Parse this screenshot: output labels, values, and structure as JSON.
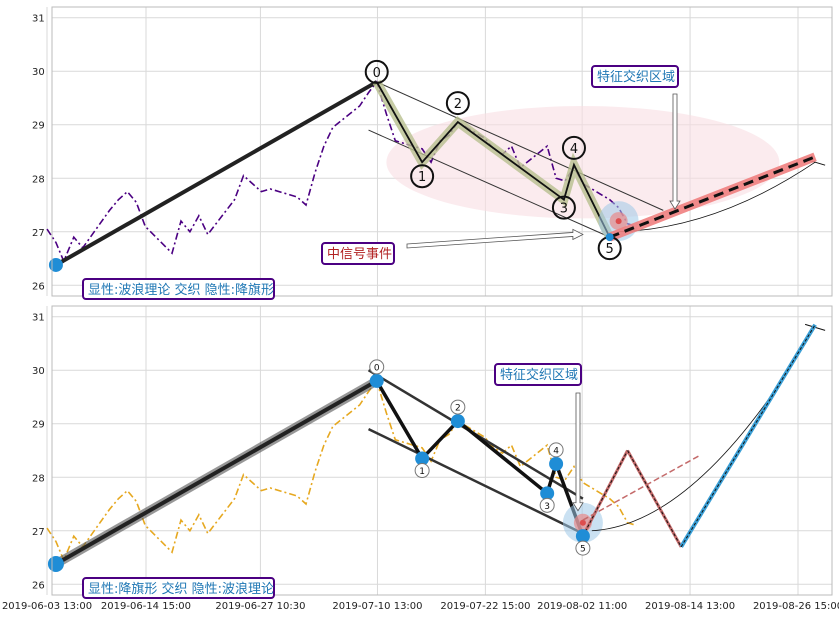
{
  "chart_data": [
    {
      "type": "line",
      "ylim": [
        25.8,
        31.2
      ],
      "yticks": [
        "26",
        "27",
        "28",
        "29",
        "30",
        "31"
      ],
      "grid": true,
      "price_color": "#4b0082",
      "price_style": "dashdot",
      "price_series": [
        [
          "2019-06-03 13:00",
          27.05
        ],
        [
          "2019-06-04 13:00",
          26.8
        ],
        [
          "2019-06-05 10:00",
          26.45
        ],
        [
          "2019-06-06 13:00",
          26.9
        ],
        [
          "2019-06-07 13:00",
          26.7
        ],
        [
          "2019-06-10 13:00",
          27.4
        ],
        [
          "2019-06-11 13:00",
          27.6
        ],
        [
          "2019-06-12 13:00",
          27.75
        ],
        [
          "2019-06-13 13:00",
          27.55
        ],
        [
          "2019-06-14 13:00",
          27.1
        ],
        [
          "2019-06-17 13:00",
          26.6
        ],
        [
          "2019-06-18 13:00",
          27.2
        ],
        [
          "2019-06-19 13:00",
          27.0
        ],
        [
          "2019-06-20 13:00",
          27.3
        ],
        [
          "2019-06-21 13:00",
          26.95
        ],
        [
          "2019-06-24 13:00",
          27.6
        ],
        [
          "2019-06-25 13:00",
          28.05
        ],
        [
          "2019-06-26 13:00",
          27.9
        ],
        [
          "2019-06-27 13:00",
          27.75
        ],
        [
          "2019-06-28 13:00",
          27.8
        ],
        [
          "2019-07-01 13:00",
          27.65
        ],
        [
          "2019-07-02 13:00",
          27.5
        ],
        [
          "2019-07-03 13:00",
          28.1
        ],
        [
          "2019-07-04 13:00",
          28.6
        ],
        [
          "2019-07-05 13:00",
          28.95
        ],
        [
          "2019-07-08 13:00",
          29.35
        ],
        [
          "2019-07-09 13:00",
          29.6
        ],
        [
          "2019-07-10 11:00",
          29.8
        ],
        [
          "2019-07-11 13:00",
          29.2
        ],
        [
          "2019-07-12 13:00",
          28.7
        ],
        [
          "2019-07-15 13:00",
          28.55
        ],
        [
          "2019-07-16 13:00",
          28.3
        ],
        [
          "2019-07-17 13:00",
          28.7
        ],
        [
          "2019-07-18 13:00",
          28.8
        ],
        [
          "2019-07-19 13:00",
          29.05
        ],
        [
          "2019-07-22 13:00",
          28.75
        ],
        [
          "2019-07-23 13:00",
          28.55
        ],
        [
          "2019-07-24 13:00",
          28.45
        ],
        [
          "2019-07-25 13:00",
          28.6
        ],
        [
          "2019-07-26 13:00",
          28.2
        ],
        [
          "2019-07-29 13:00",
          28.6
        ],
        [
          "2019-07-30 13:00",
          28.0
        ],
        [
          "2019-07-31 13:00",
          27.95
        ],
        [
          "2019-08-01 13:00",
          28.2
        ],
        [
          "2019-08-02 13:00",
          27.9
        ],
        [
          "2019-08-05 13:00",
          27.6
        ],
        [
          "2019-08-06 13:00",
          27.45
        ],
        [
          "2019-08-07 13:00",
          27.15
        ],
        [
          "2019-08-08 13:00",
          27.1
        ]
      ],
      "waves": {
        "labels": [
          "0",
          "1",
          "2",
          "3",
          "4",
          "5"
        ],
        "points": [
          [
            "2019-07-10 11:00",
            29.8
          ],
          [
            "2019-07-15 13:00",
            28.3
          ],
          [
            "2019-07-19 13:00",
            29.05
          ],
          [
            "2019-07-31 10:00",
            27.6
          ],
          [
            "2019-08-01 13:00",
            28.25
          ],
          [
            "2019-08-05 13:00",
            26.9
          ]
        ]
      },
      "impulse_line": [
        [
          "2019-06-04 13:00",
          26.38
        ],
        [
          "2019-07-10 11:00",
          29.8
        ]
      ],
      "start_point": [
        "2019-06-04 13:00",
        26.38
      ],
      "channel_upper": [
        [
          "2019-07-10 11:00",
          29.8
        ],
        [
          "2019-08-11 13:00",
          27.4
        ]
      ],
      "channel_lower": [
        [
          "2019-07-09 13:00",
          28.9
        ],
        [
          "2019-08-05 13:00",
          26.9
        ]
      ],
      "forecast": [
        [
          "2019-08-05 13:00",
          26.9
        ],
        [
          "2019-08-28 13:00",
          28.4
        ]
      ],
      "forecast_arc": [
        [
          "2019-08-06 13:00",
          27.0
        ],
        [
          "2019-08-17 13:00",
          27.25
        ],
        [
          "2019-08-28 13:00",
          28.3
        ]
      ],
      "feature_zone": {
        "center": [
          "2019-08-06 13:00",
          27.2
        ],
        "label": "特征交织区域"
      },
      "signal_event": {
        "label": "中信号事件",
        "arrow_to": [
          "2019-08-02 13:00",
          26.95
        ]
      },
      "ellipse_zone": {
        "center": [
          "2019-08-02 13:00",
          28.3
        ],
        "rx_days": 22,
        "ry_price": 1.05
      },
      "summary_label": "显性:波浪理论 交织 隐性:降旗形",
      "label_colors": {
        "box_border": "#4b0082",
        "box_text": "#1f77b4",
        "signal_text": "#b22222"
      }
    },
    {
      "type": "line",
      "ylim": [
        25.8,
        31.2
      ],
      "yticks": [
        "26",
        "27",
        "28",
        "29",
        "30",
        "31"
      ],
      "xticks": [
        "2019-06-03 13:00",
        "2019-06-14 15:00",
        "2019-06-27 10:30",
        "2019-07-10 13:00",
        "2019-07-22 15:00",
        "2019-08-02 11:00",
        "2019-08-14 13:00",
        "2019-08-26 15:00"
      ],
      "grid": true,
      "price_color": "#e6a820",
      "price_style": "dashdot",
      "price_series": [
        [
          "2019-06-03 13:00",
          27.05
        ],
        [
          "2019-06-04 13:00",
          26.8
        ],
        [
          "2019-06-05 10:00",
          26.45
        ],
        [
          "2019-06-06 13:00",
          26.9
        ],
        [
          "2019-06-07 13:00",
          26.7
        ],
        [
          "2019-06-10 13:00",
          27.4
        ],
        [
          "2019-06-11 13:00",
          27.6
        ],
        [
          "2019-06-12 13:00",
          27.75
        ],
        [
          "2019-06-13 13:00",
          27.55
        ],
        [
          "2019-06-14 13:00",
          27.1
        ],
        [
          "2019-06-17 13:00",
          26.6
        ],
        [
          "2019-06-18 13:00",
          27.2
        ],
        [
          "2019-06-19 13:00",
          27.0
        ],
        [
          "2019-06-20 13:00",
          27.3
        ],
        [
          "2019-06-21 13:00",
          26.95
        ],
        [
          "2019-06-24 13:00",
          27.6
        ],
        [
          "2019-06-25 13:00",
          28.05
        ],
        [
          "2019-06-26 13:00",
          27.9
        ],
        [
          "2019-06-27 13:00",
          27.75
        ],
        [
          "2019-06-28 13:00",
          27.8
        ],
        [
          "2019-07-01 13:00",
          27.65
        ],
        [
          "2019-07-02 13:00",
          27.5
        ],
        [
          "2019-07-03 13:00",
          28.1
        ],
        [
          "2019-07-04 13:00",
          28.6
        ],
        [
          "2019-07-05 13:00",
          28.95
        ],
        [
          "2019-07-08 13:00",
          29.35
        ],
        [
          "2019-07-09 13:00",
          29.6
        ],
        [
          "2019-07-10 11:00",
          29.8
        ],
        [
          "2019-07-11 13:00",
          29.2
        ],
        [
          "2019-07-12 13:00",
          28.7
        ],
        [
          "2019-07-15 13:00",
          28.55
        ],
        [
          "2019-07-16 13:00",
          28.3
        ],
        [
          "2019-07-17 13:00",
          28.7
        ],
        [
          "2019-07-18 13:00",
          28.8
        ],
        [
          "2019-07-19 13:00",
          29.05
        ],
        [
          "2019-07-22 13:00",
          28.75
        ],
        [
          "2019-07-23 13:00",
          28.55
        ],
        [
          "2019-07-24 13:00",
          28.45
        ],
        [
          "2019-07-25 13:00",
          28.6
        ],
        [
          "2019-07-26 13:00",
          28.2
        ],
        [
          "2019-07-29 13:00",
          28.6
        ],
        [
          "2019-07-30 13:00",
          28.0
        ],
        [
          "2019-07-31 13:00",
          27.95
        ],
        [
          "2019-08-01 13:00",
          28.2
        ],
        [
          "2019-08-02 13:00",
          27.9
        ],
        [
          "2019-08-05 13:00",
          27.6
        ],
        [
          "2019-08-06 13:00",
          27.45
        ],
        [
          "2019-08-07 13:00",
          27.15
        ],
        [
          "2019-08-08 13:00",
          27.1
        ]
      ],
      "waves": {
        "labels": [
          "0",
          "1",
          "2",
          "3",
          "4",
          "5"
        ],
        "points": [
          [
            "2019-07-10 11:00",
            29.8
          ],
          [
            "2019-07-15 13:00",
            28.35
          ],
          [
            "2019-07-19 13:00",
            29.05
          ],
          [
            "2019-07-29 13:00",
            27.7
          ],
          [
            "2019-07-30 13:00",
            28.25
          ],
          [
            "2019-08-02 13:00",
            26.9
          ]
        ]
      },
      "impulse_line": [
        [
          "2019-06-04 13:00",
          26.38
        ],
        [
          "2019-07-10 11:00",
          29.8
        ]
      ],
      "start_point": [
        "2019-06-04 13:00",
        26.38
      ],
      "channel_upper": [
        [
          "2019-07-09 13:00",
          30.0
        ],
        [
          "2019-08-02 13:00",
          27.6
        ]
      ],
      "channel_lower": [
        [
          "2019-07-09 13:00",
          28.9
        ],
        [
          "2019-08-02 13:00",
          26.95
        ]
      ],
      "forecast_zigzag": [
        [
          "2019-08-02 13:00",
          26.9
        ],
        [
          "2019-08-07 13:00",
          28.5
        ],
        [
          "2019-08-13 13:00",
          26.7
        ],
        [
          "2019-08-28 13:00",
          30.85
        ]
      ],
      "forecast_dashed": [
        [
          "2019-08-02 13:00",
          27.2
        ],
        [
          "2019-08-15 13:00",
          28.4
        ]
      ],
      "forecast_arc": [
        [
          "2019-08-03 13:00",
          27.0
        ],
        [
          "2019-08-15 13:00",
          27.3
        ],
        [
          "2019-08-28 13:00",
          30.8
        ]
      ],
      "feature_zone": {
        "center": [
          "2019-08-02 13:00",
          27.15
        ],
        "label": "特征交织区域"
      },
      "summary_label": "显性:降旗形 交织 隐性:波浪理论",
      "label_colors": {
        "box_border": "#4b0082",
        "box_text": "#1f77b4"
      }
    }
  ]
}
